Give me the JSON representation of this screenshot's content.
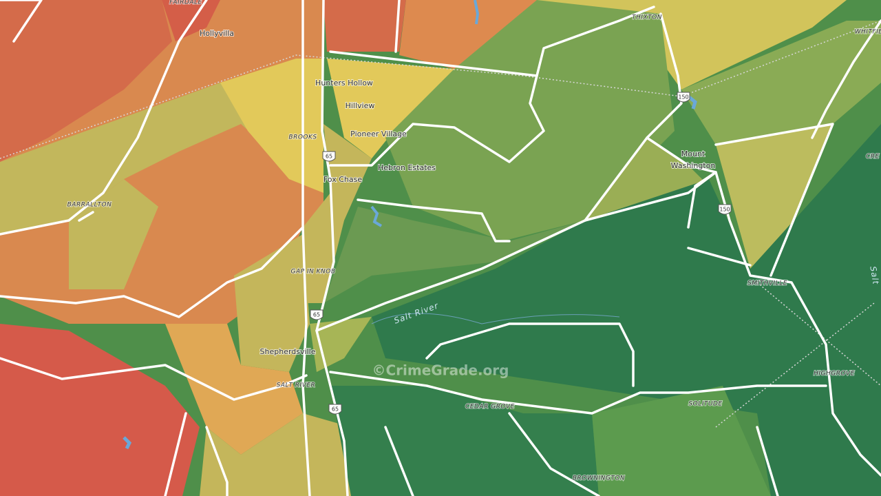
{
  "labels": [
    {
      "text": "FAIRDALE",
      "kind": "cap"
    },
    {
      "text": "Hollyvilla",
      "kind": "lbl"
    },
    {
      "text": "Hunters Hollow",
      "kind": "lbl"
    },
    {
      "text": "Hillview",
      "kind": "lbl"
    },
    {
      "text": "BROOKS",
      "kind": "cap"
    },
    {
      "text": "Pioneer Village",
      "kind": "lbl"
    },
    {
      "text": "Hebron Estates",
      "kind": "lbl"
    },
    {
      "text": "Fox Chase",
      "kind": "lbl"
    },
    {
      "text": "BARRALLTON",
      "kind": "cap"
    },
    {
      "text": "GAP IN KNOB",
      "kind": "cap"
    },
    {
      "text": "Salt River",
      "kind": "river"
    },
    {
      "text": "Shepherdsville",
      "kind": "lbl"
    },
    {
      "text": "SALT RIVER",
      "kind": "cap"
    },
    {
      "text": "THIXTON",
      "kind": "cap"
    },
    {
      "text": "Mount",
      "kind": "lbl"
    },
    {
      "text": "Washington",
      "kind": "lbl"
    },
    {
      "text": "WHITFIE",
      "kind": "cap"
    },
    {
      "text": "CRE",
      "kind": "cap"
    },
    {
      "text": "SMITHVILLE",
      "kind": "cap"
    },
    {
      "text": "Salt",
      "kind": "river"
    },
    {
      "text": "HIGHGROVE",
      "kind": "cap"
    },
    {
      "text": "SOLITUDE",
      "kind": "cap"
    },
    {
      "text": "CEDAR GROVE",
      "kind": "cap"
    },
    {
      "text": "BROWNINGTON",
      "kind": "cap"
    }
  ],
  "shields": [
    "65",
    "65",
    "65",
    "150",
    "150"
  ],
  "watermark": "©CrimeGrade.org"
}
